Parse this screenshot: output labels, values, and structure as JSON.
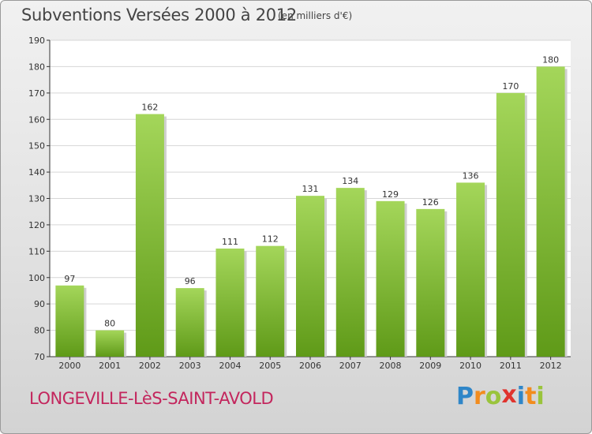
{
  "header": {
    "title": "Subventions Versées 2000 à 2012",
    "subtitle": "(en milliers d'€)"
  },
  "footer": {
    "town": "LONGEVILLE-LèS-SAINT-AVOLD",
    "brand": "Proxiti",
    "brand_letters": [
      {
        "ch": "P",
        "color": "#2f86c8"
      },
      {
        "ch": "r",
        "color": "#f28c1e"
      },
      {
        "ch": "o",
        "color": "#9ac43c"
      },
      {
        "ch": "x",
        "color": "#e0342e"
      },
      {
        "ch": "i",
        "color": "#2f86c8"
      },
      {
        "ch": "t",
        "color": "#f28c1e"
      },
      {
        "ch": "i",
        "color": "#9ac43c"
      }
    ]
  },
  "colors": {
    "bar_top": "#a4d65a",
    "bar_bottom": "#5f9a18",
    "grid": "#d6d6d6",
    "axis": "#333333",
    "text": "#333333"
  },
  "chart_data": {
    "type": "bar",
    "categories": [
      "2000",
      "2001",
      "2002",
      "2003",
      "2004",
      "2005",
      "2006",
      "2007",
      "2008",
      "2009",
      "2010",
      "2011",
      "2012"
    ],
    "values": [
      97,
      80,
      162,
      96,
      111,
      112,
      131,
      134,
      129,
      126,
      136,
      170,
      180
    ],
    "ylim": [
      70,
      190
    ],
    "yticks": [
      70,
      80,
      90,
      100,
      110,
      120,
      130,
      140,
      150,
      160,
      170,
      180,
      190
    ],
    "grid": true,
    "data_labels": true
  }
}
